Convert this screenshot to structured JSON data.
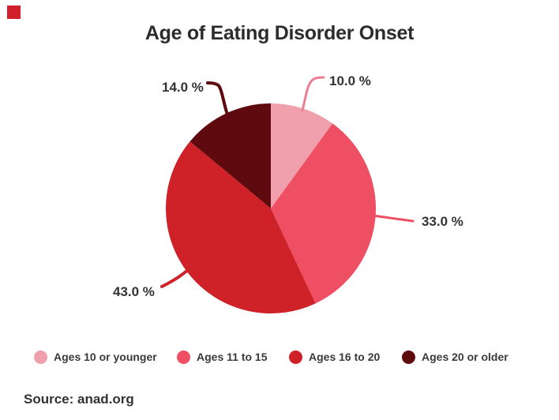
{
  "accent": {
    "color": "#d1202b"
  },
  "chart_data": {
    "type": "pie",
    "title": "Age of Eating Disorder Onset",
    "categories": [
      "Ages 10 or younger",
      "Ages 11 to 15",
      "Ages 16 to 20",
      "Ages 20 or older"
    ],
    "values": [
      10.0,
      33.0,
      43.0,
      14.0
    ],
    "value_labels": [
      "10.0 %",
      "33.0 %",
      "43.0 %",
      "14.0 %"
    ],
    "colors": [
      "#f0a0ad",
      "#ee4f63",
      "#ce2128",
      "#5e0a0e"
    ],
    "leader_line_colors": [
      "#ec7e92",
      "#ee4f63",
      "#ce2128",
      "#5e0a0e"
    ],
    "start_angle_deg": 0,
    "direction": "clockwise",
    "legend_position": "bottom",
    "source": "Source: anad.org"
  }
}
